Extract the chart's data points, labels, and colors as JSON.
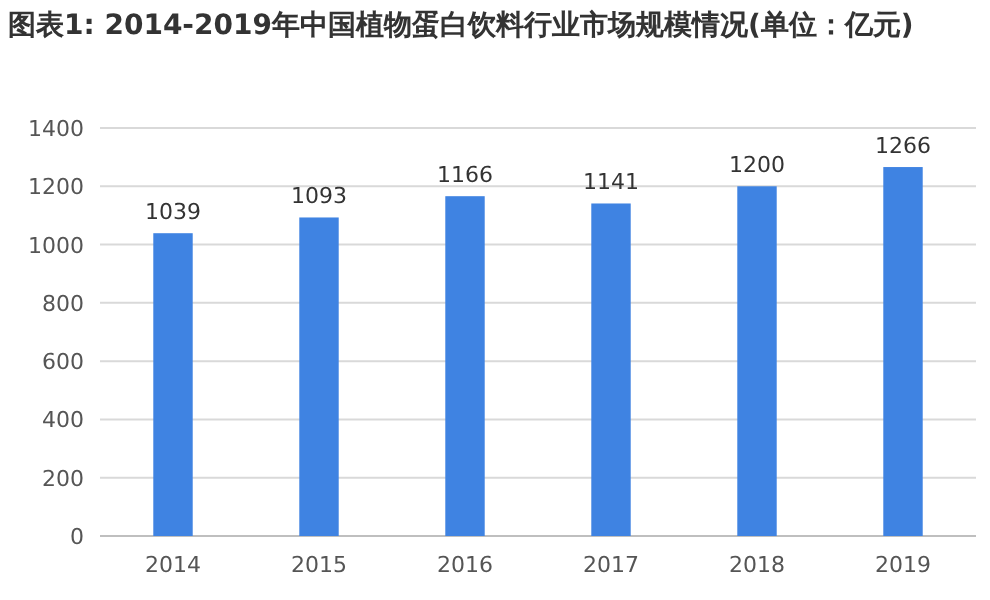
{
  "chart_data": {
    "type": "bar",
    "title": "图表1: 2014-2019年中国植物蛋白饮料行业市场规模情况(单位：亿元)",
    "categories": [
      "2014",
      "2015",
      "2016",
      "2017",
      "2018",
      "2019"
    ],
    "values": [
      1039,
      1093,
      1166,
      1141,
      1200,
      1266
    ],
    "color": "#3f83e2",
    "ylim": [
      0,
      1400
    ],
    "yticks": [
      0,
      200,
      400,
      600,
      800,
      1000,
      1200,
      1400
    ],
    "grid": "y",
    "data_labels": true
  }
}
